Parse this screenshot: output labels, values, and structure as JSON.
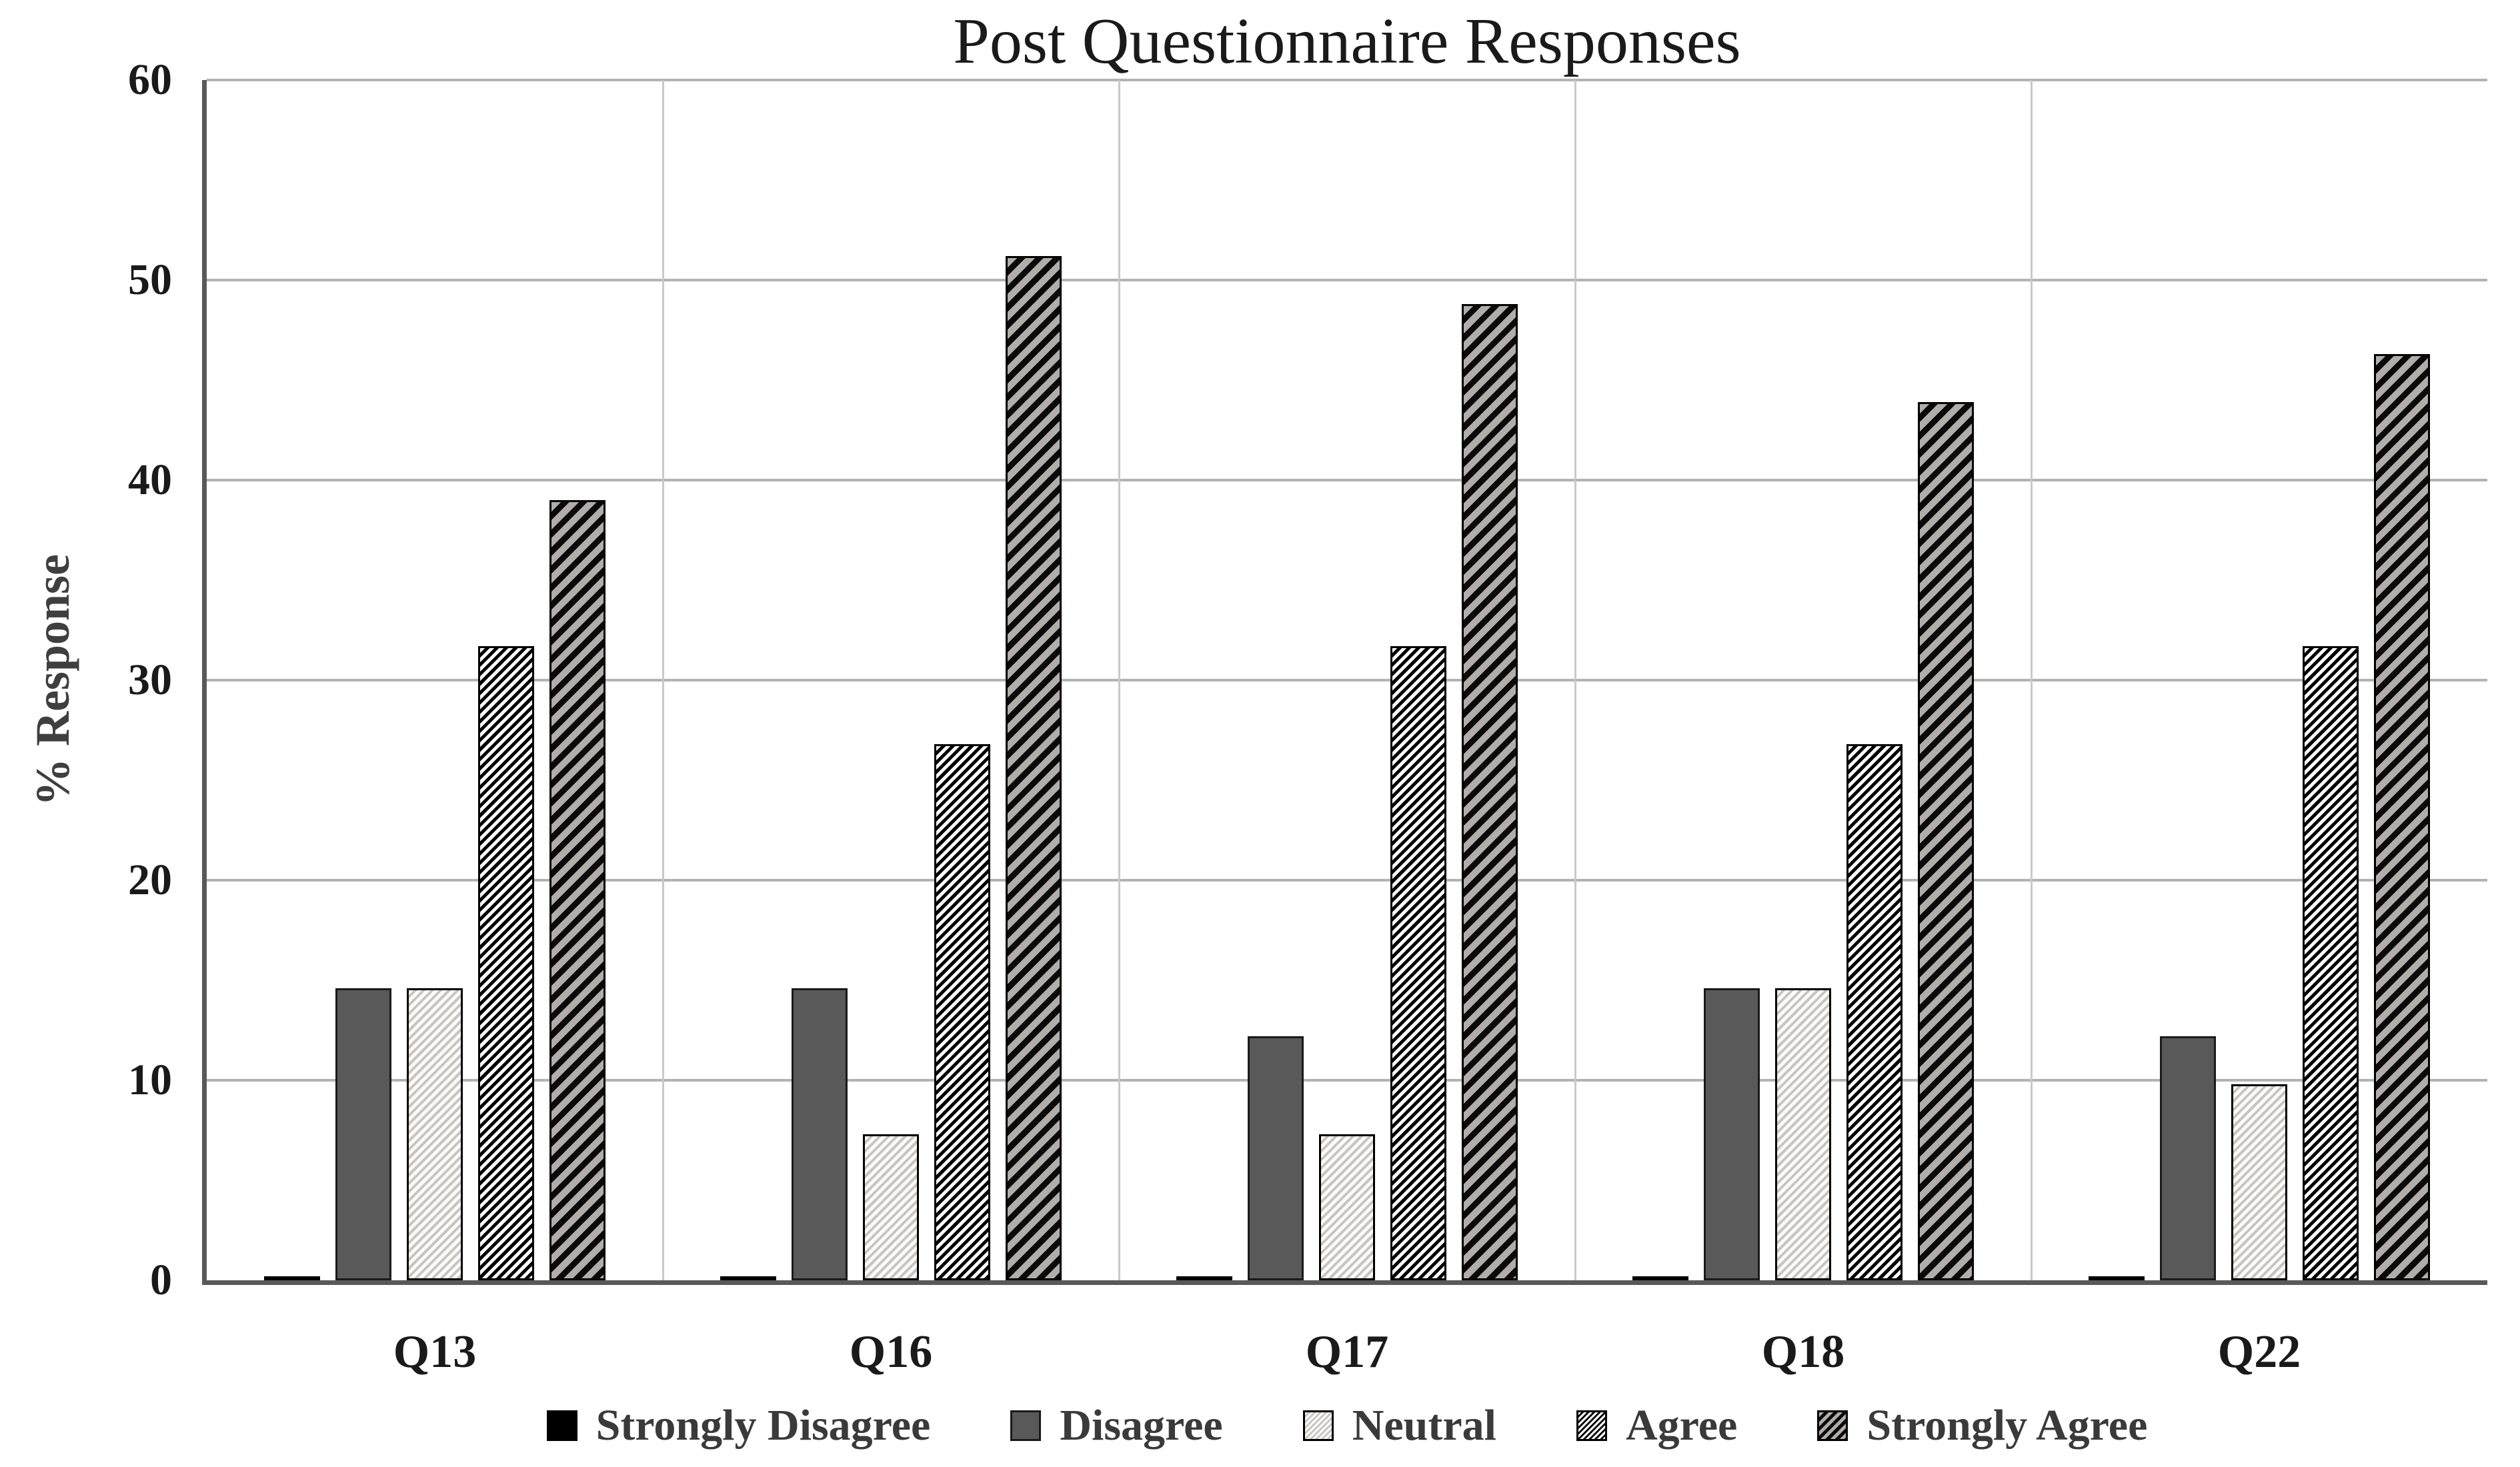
{
  "chart_data": {
    "type": "bar",
    "title": "Post Questionnaire Responses",
    "xlabel": "",
    "ylabel": "% Response",
    "ylim": [
      0,
      60
    ],
    "ytick_step": 10,
    "yticks": [
      0,
      10,
      20,
      30,
      40,
      50,
      60
    ],
    "grid": "horizontal-and-category-boundaries",
    "legend_position": "bottom-center",
    "categories": [
      "Q13",
      "Q16",
      "Q17",
      "Q18",
      "Q22"
    ],
    "series": [
      {
        "name": "Strongly Disagree",
        "pattern": "solid-black",
        "values": [
          0.2,
          0.2,
          0.2,
          0.2,
          0.2
        ]
      },
      {
        "name": "Disagree",
        "pattern": "solid-darkgray",
        "values": [
          14.6,
          14.6,
          12.2,
          14.6,
          12.2
        ]
      },
      {
        "name": "Neutral",
        "pattern": "hatch-light",
        "values": [
          14.6,
          7.3,
          7.3,
          14.6,
          9.8
        ]
      },
      {
        "name": "Agree",
        "pattern": "hatch-fine-black",
        "values": [
          31.7,
          26.8,
          31.7,
          26.8,
          31.7
        ]
      },
      {
        "name": "Strongly Agree",
        "pattern": "stripe-wide-gray",
        "values": [
          39.0,
          51.2,
          48.8,
          43.9,
          46.3
        ]
      }
    ]
  },
  "style": {
    "background": "#ffffff",
    "axis_color": "#595959",
    "hgrid_color": "#b3b3b3",
    "vgrid_color": "#c9c9c9",
    "title_color": "#1a1a1a",
    "tick_label_color": "#1a1a1a",
    "legend_text_color": "#3a3a3a",
    "disagree_fill": "#595959",
    "strongly_disagree_fill": "#000000",
    "strongly_agree_stripe_bg": "#b2ada9"
  }
}
